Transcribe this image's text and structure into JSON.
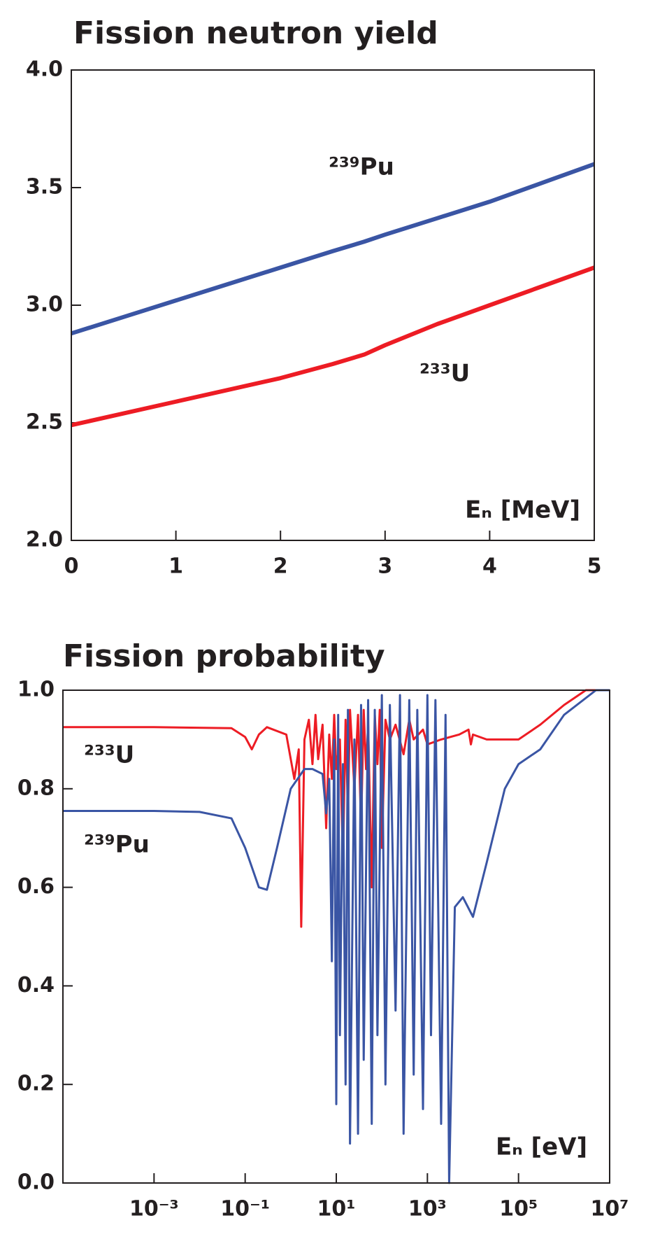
{
  "chart_data": [
    {
      "type": "line",
      "title": "Fission neutron yield",
      "annotation": "Eₙ [MeV]",
      "xlim": [
        0,
        5
      ],
      "xticks": [
        0,
        1,
        2,
        3,
        4,
        5
      ],
      "ylim": [
        2.0,
        4.0
      ],
      "yticks": [
        {
          "value": 2.0,
          "label": "2.0"
        },
        {
          "value": 2.5,
          "label": "2.5"
        },
        {
          "value": 3.0,
          "label": "3.0"
        },
        {
          "value": 3.5,
          "label": "3.5"
        },
        {
          "value": 4.0,
          "label": "4.0"
        }
      ],
      "x": [
        0,
        0.5,
        1,
        1.5,
        2,
        2.5,
        2.8,
        3,
        3.5,
        4,
        4.5,
        5
      ],
      "series": [
        {
          "name": "²³⁹Pu",
          "color": "#3a55a4",
          "values": [
            2.88,
            2.95,
            3.02,
            3.09,
            3.16,
            3.23,
            3.27,
            3.3,
            3.37,
            3.44,
            3.52,
            3.6
          ]
        },
        {
          "name": "²³³U",
          "color": "#ed1c24",
          "values": [
            2.49,
            2.54,
            2.59,
            2.64,
            2.69,
            2.75,
            2.79,
            2.83,
            2.92,
            3.0,
            3.08,
            3.16
          ]
        }
      ]
    },
    {
      "type": "line",
      "title": "Fission probability",
      "log_x": true,
      "annotation": "Eₙ [eV]",
      "xlim": [
        1e-05,
        10000000
      ],
      "xticks": [
        {
          "value": 0.001,
          "label": "10⁻³"
        },
        {
          "value": 0.1,
          "label": "10⁻¹"
        },
        {
          "value": 10,
          "label": "10¹"
        },
        {
          "value": 1000,
          "label": "10³"
        },
        {
          "value": 100000,
          "label": "10⁵"
        },
        {
          "value": 10000000,
          "label": "10⁷"
        }
      ],
      "ylim": [
        0.0,
        1.0
      ],
      "yticks": [
        {
          "value": 0.0,
          "label": "0.0"
        },
        0.2,
        0.4,
        0.6,
        0.8,
        {
          "value": 1.0,
          "label": "1.0"
        }
      ],
      "series": [
        {
          "name": "²³³U",
          "color": "#ed1c24",
          "x": [
            1e-05,
            0.001,
            0.05,
            0.1,
            0.14,
            0.2,
            0.3,
            0.8,
            1.2,
            1.5,
            1.7,
            2,
            2.5,
            3,
            3.5,
            4,
            5,
            6,
            7,
            8,
            9,
            10,
            12,
            14,
            16,
            18,
            20,
            25,
            30,
            35,
            40,
            45,
            50,
            60,
            70,
            80,
            90,
            100,
            120,
            150,
            200,
            300,
            400,
            500,
            800,
            1000,
            2000,
            5000,
            8000,
            9000,
            10000,
            20000,
            50000,
            100000,
            300000,
            1000000,
            3000000,
            10000000
          ],
          "values": [
            0.925,
            0.925,
            0.923,
            0.905,
            0.88,
            0.91,
            0.925,
            0.91,
            0.82,
            0.88,
            0.52,
            0.9,
            0.94,
            0.85,
            0.95,
            0.86,
            0.93,
            0.72,
            0.91,
            0.82,
            0.95,
            0.84,
            0.9,
            0.65,
            0.94,
            0.75,
            0.96,
            0.8,
            0.95,
            0.72,
            0.96,
            0.84,
            0.93,
            0.6,
            0.95,
            0.85,
            0.96,
            0.68,
            0.94,
            0.9,
            0.93,
            0.87,
            0.94,
            0.9,
            0.92,
            0.89,
            0.9,
            0.91,
            0.92,
            0.89,
            0.91,
            0.9,
            0.9,
            0.9,
            0.93,
            0.97,
            1.0,
            1.0
          ]
        },
        {
          "name": "²³⁹Pu",
          "color": "#3a55a4",
          "x": [
            1e-05,
            0.001,
            0.01,
            0.05,
            0.1,
            0.2,
            0.3,
            0.5,
            1,
            2,
            3,
            5,
            6,
            7,
            8,
            9,
            10,
            11,
            12,
            14,
            16,
            18,
            20,
            25,
            30,
            35,
            40,
            50,
            60,
            70,
            80,
            100,
            120,
            150,
            200,
            250,
            300,
            400,
            500,
            600,
            800,
            1000,
            1200,
            1500,
            2000,
            2500,
            3000,
            4000,
            6000,
            10000,
            20000,
            50000,
            100000,
            300000,
            1000000,
            5000000,
            10000000
          ],
          "values": [
            0.755,
            0.755,
            0.753,
            0.74,
            0.68,
            0.6,
            0.595,
            0.68,
            0.8,
            0.84,
            0.84,
            0.83,
            0.75,
            0.82,
            0.45,
            0.9,
            0.16,
            0.95,
            0.3,
            0.85,
            0.2,
            0.96,
            0.08,
            0.9,
            0.1,
            0.97,
            0.25,
            0.98,
            0.12,
            0.96,
            0.3,
            0.99,
            0.2,
            0.97,
            0.35,
            0.99,
            0.1,
            0.98,
            0.22,
            0.96,
            0.15,
            0.99,
            0.3,
            0.98,
            0.12,
            0.95,
            0.0,
            0.56,
            0.58,
            0.54,
            0.65,
            0.8,
            0.85,
            0.88,
            0.95,
            1.0,
            1.0
          ]
        }
      ]
    }
  ]
}
